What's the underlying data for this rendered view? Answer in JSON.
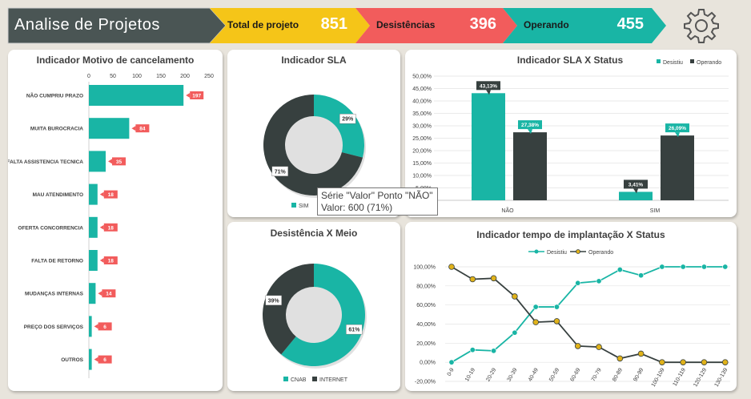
{
  "header": {
    "title": "Analise de Projetos",
    "kpis": [
      {
        "label": "Total de projeto",
        "value": "851",
        "color": "#f5c518"
      },
      {
        "label": "Desistências",
        "value": "396",
        "color": "#f25c5c"
      },
      {
        "label": "Operando",
        "value": "455",
        "color": "#19b5a5"
      }
    ],
    "settings_icon": "gear-icon"
  },
  "colors": {
    "teal": "#19b5a5",
    "dark": "#37403f",
    "red": "#f25c5c",
    "yellow": "#f5c518",
    "title_bg": "#4a5554"
  },
  "tooltip": {
    "line1": "Série \"Valor\" Ponto \"NÃO\"",
    "line2": "Valor: 600 (71%)"
  },
  "chart_data": [
    {
      "id": "motivo",
      "type": "bar",
      "orientation": "horizontal",
      "title": "Indicador Motivo de cancelamento",
      "categories": [
        "NÃO CUMPRIU PRAZO",
        "MUITA BUROCRACIA",
        "FALTA ASSISTENCIA TECNICA",
        "MAU ATENDIMENTO",
        "OFERTA CONCORRENCIA",
        "FALTA DE RETORNO",
        "MUDANÇAS INTERNAS",
        "PREÇO DOS SERVIÇOS",
        "OUTROS"
      ],
      "values": [
        197,
        84,
        35,
        18,
        18,
        18,
        14,
        6,
        6
      ],
      "xlim": [
        0,
        250
      ],
      "xticks": [
        0,
        50,
        100,
        150,
        200,
        250
      ]
    },
    {
      "id": "sla",
      "type": "pie",
      "donut": true,
      "title": "Indicador SLA",
      "labels": [
        "SIM",
        "NÃO"
      ],
      "values": [
        245,
        600
      ],
      "data_labels": [
        "29%",
        "71%"
      ],
      "legend": [
        "SIM"
      ]
    },
    {
      "id": "sla_status",
      "type": "bar",
      "title": "Indicador SLA X Status",
      "categories": [
        "NÃO",
        "SIM"
      ],
      "series": [
        {
          "name": "Desistiu",
          "values": [
            43.13,
            3.41
          ],
          "labels": [
            "43,13%",
            "3,41%"
          ]
        },
        {
          "name": "Operando",
          "values": [
            27.38,
            26.09
          ],
          "labels": [
            "27,38%",
            "26,09%"
          ]
        }
      ],
      "ylim": [
        0,
        50
      ],
      "yticks": [
        "0,00%",
        "5,00%",
        "10,00%",
        "15,00%",
        "20,00%",
        "25,00%",
        "30,00%",
        "35,00%",
        "40,00%",
        "45,00%",
        "50,00%"
      ],
      "legend": "top-right",
      "grid": true
    },
    {
      "id": "meio",
      "type": "pie",
      "donut": true,
      "title": "Desistência X Meio",
      "labels": [
        "CNAB",
        "INTERNET"
      ],
      "values": [
        61,
        39
      ],
      "data_labels": [
        "61%",
        "39%"
      ]
    },
    {
      "id": "tempo",
      "type": "line",
      "title": "Indicador tempo de implantação X Status",
      "x": [
        "0-9",
        "10-19",
        "20-29",
        "30-39",
        "40-49",
        "50-59",
        "60-69",
        "70-79",
        "80-89",
        "90-99",
        "100-109",
        "110-119",
        "120-129",
        "130-139"
      ],
      "series": [
        {
          "name": "Desistiu",
          "values": [
            0,
            13,
            12,
            31,
            58,
            58,
            83,
            85,
            97,
            91,
            100,
            100,
            100,
            100
          ]
        },
        {
          "name": "Operando",
          "values": [
            100,
            87,
            88,
            69,
            42,
            43,
            17,
            16,
            4,
            9,
            0,
            0,
            0,
            0
          ]
        }
      ],
      "ylim": [
        -20,
        100
      ],
      "yticks": [
        "-20,00%",
        "0,00%",
        "20,00%",
        "40,00%",
        "60,00%",
        "80,00%",
        "100,00%"
      ],
      "legend": "top",
      "grid": true
    }
  ]
}
